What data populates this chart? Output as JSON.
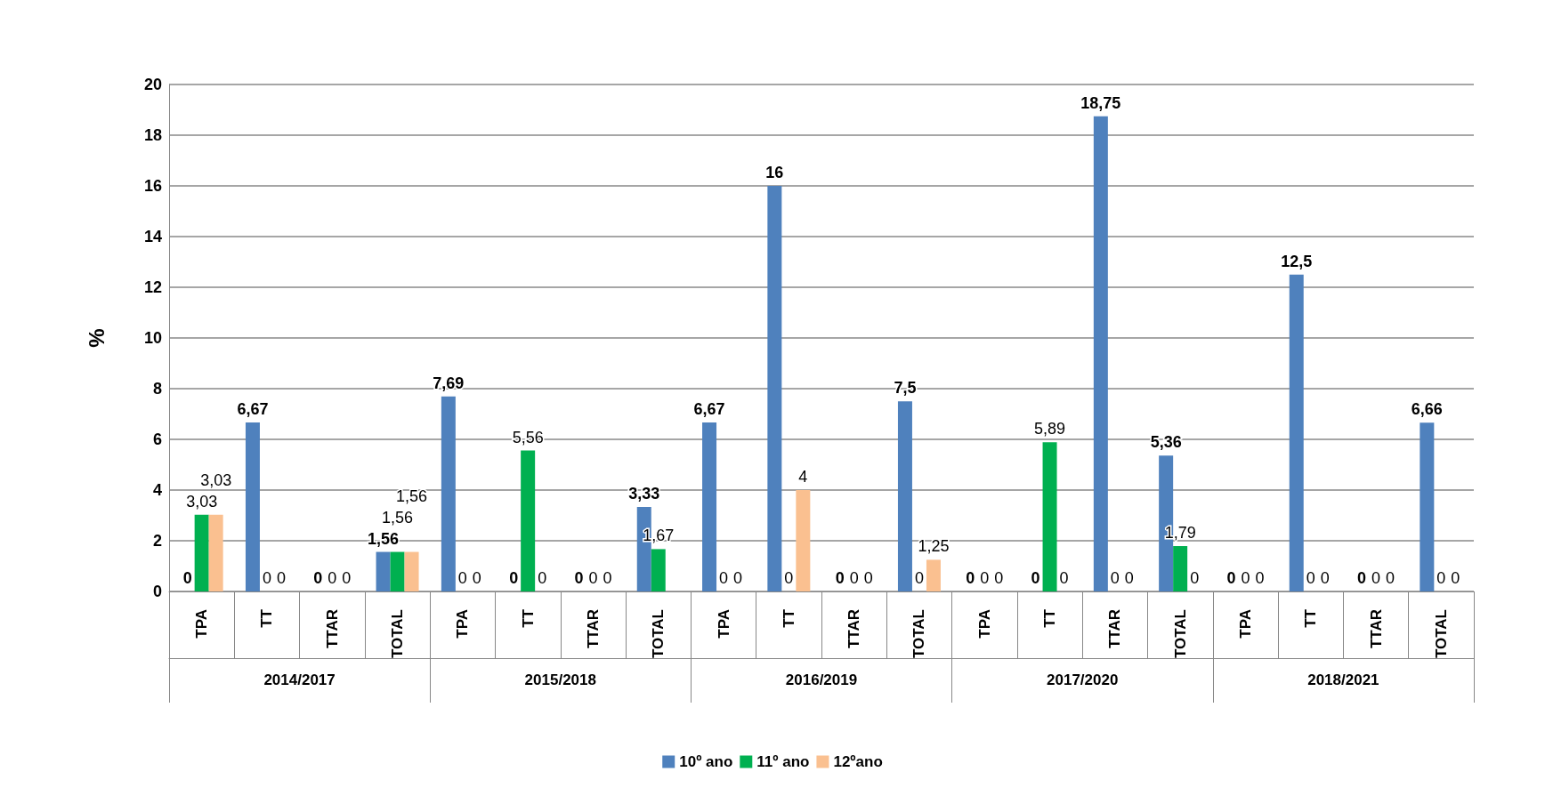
{
  "chart_data": {
    "type": "bar",
    "ylabel": "%",
    "categories": [
      "TPA",
      "TT",
      "TTAR",
      "TOTAL",
      "TPA",
      "TT",
      "TTAR",
      "TOTAL",
      "TPA",
      "TT",
      "TTAR",
      "TOTAL",
      "TPA",
      "TT",
      "TTAR",
      "TOTAL",
      "TPA",
      "TT",
      "TTAR",
      "TOTAL"
    ],
    "annotations": [
      "2014/2017",
      "2015/2018",
      "2016/2019",
      "2017/2020",
      "2018/2021"
    ],
    "series": [
      {
        "name": "10º ano",
        "color": "#4f81bd",
        "values": [
          0,
          6.67,
          0,
          1.56,
          7.69,
          0,
          0,
          3.33,
          6.67,
          16,
          0,
          7.5,
          0,
          0,
          18.75,
          5.36,
          0,
          12.5,
          0,
          6.66
        ],
        "value_labels": [
          "0",
          "6,67",
          "0",
          "1,56",
          "7,69",
          "0",
          "0",
          "3,33",
          "6,67",
          "16",
          "0",
          "7,5",
          "0",
          "0",
          "18,75",
          "5,36",
          "0",
          "12,5",
          "0",
          "6,66"
        ]
      },
      {
        "name": "11º ano",
        "color": "#00b050",
        "values": [
          3.03,
          0,
          0,
          1.56,
          0,
          5.56,
          0,
          1.67,
          0,
          0,
          0,
          0,
          0,
          5.89,
          0,
          1.79,
          0,
          0,
          0,
          0
        ],
        "value_labels": [
          "3,03",
          "0",
          "0",
          "1,56",
          "0",
          "5,56",
          "0",
          "1,67",
          "0",
          "0",
          "0",
          "0",
          "0",
          "5,89",
          "0",
          "1,79",
          "0",
          "0",
          "0",
          "0"
        ]
      },
      {
        "name": "12ºano",
        "color": "#fac090",
        "values": [
          3.03,
          0,
          0,
          1.56,
          0,
          0,
          0,
          0,
          0,
          4,
          0,
          1.25,
          0,
          0,
          0,
          0,
          0,
          0,
          0,
          0
        ],
        "value_labels": [
          "3,03",
          "0",
          "0",
          "1,56",
          "0",
          "0",
          "0",
          null,
          "0",
          "4",
          "0",
          "1,25",
          "0",
          "0",
          "0",
          "0",
          "0",
          "0",
          "0",
          "0"
        ]
      }
    ],
    "ylim": [
      0,
      20
    ],
    "yticks": [
      0,
      2,
      4,
      6,
      8,
      10,
      12,
      14,
      16,
      18,
      20
    ],
    "grid": "y",
    "legend": "bottom"
  }
}
